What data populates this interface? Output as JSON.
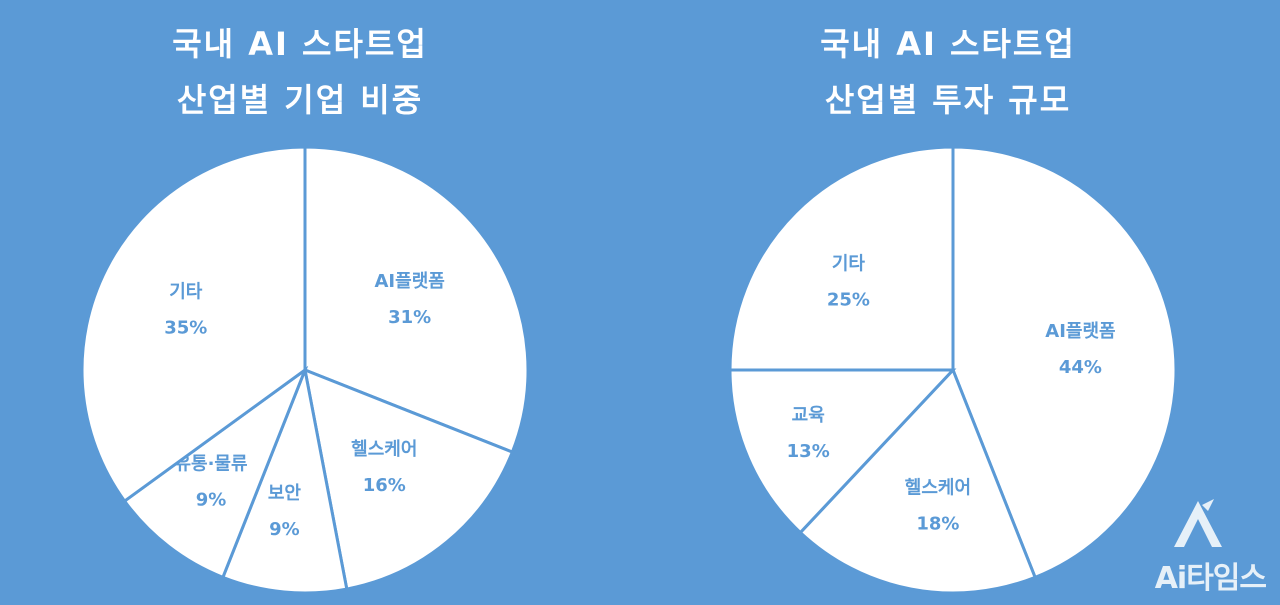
{
  "colors": {
    "background": "#5b9ad6",
    "slice_fill": "#ffffff",
    "slice_stroke": "#5b9ad6",
    "label": "#5b9ad6"
  },
  "chart_data": [
    {
      "type": "pie",
      "title_lines": [
        "국내 AI 스타트업",
        "산업별 기업 비중"
      ],
      "slices": [
        {
          "label": "AI플랫폼",
          "value": 31,
          "display": "31%"
        },
        {
          "label": "헬스케어",
          "value": 16,
          "display": "16%"
        },
        {
          "label": "보안",
          "value": 9,
          "display": "9%"
        },
        {
          "label": "유통·물류",
          "value": 9,
          "display": "9%"
        },
        {
          "label": "기타",
          "value": 35,
          "display": "35%"
        }
      ]
    },
    {
      "type": "pie",
      "title_lines": [
        "국내 AI 스타트업",
        "산업별 투자 규모"
      ],
      "slices": [
        {
          "label": "AI플랫폼",
          "value": 44,
          "display": "44%"
        },
        {
          "label": "헬스케어",
          "value": 18,
          "display": "18%"
        },
        {
          "label": "교육",
          "value": 13,
          "display": "13%"
        },
        {
          "label": "기타",
          "value": 25,
          "display": "25%"
        }
      ]
    }
  ],
  "logo": {
    "text": "Ai타임스",
    "icon": "ai-times-logo-icon"
  }
}
